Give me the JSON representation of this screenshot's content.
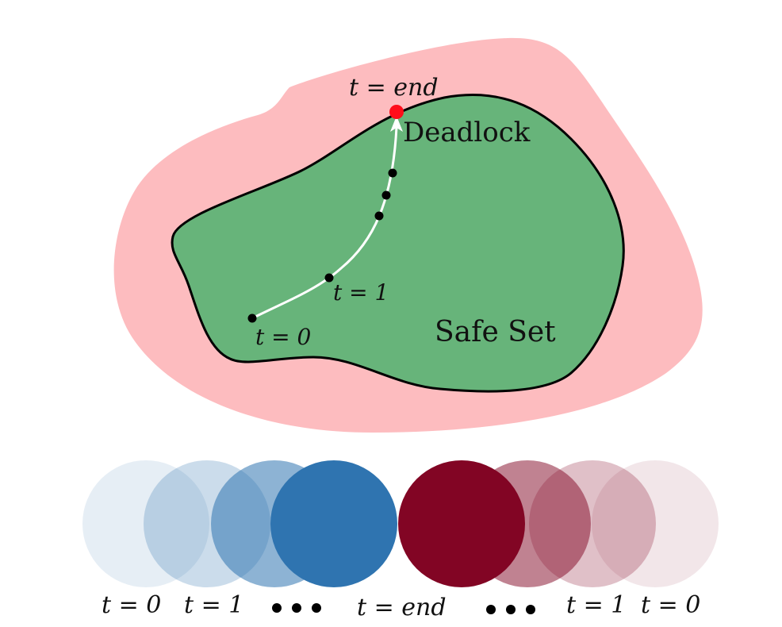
{
  "colors": {
    "unsafe_region": "#fdbcbf",
    "safe_region": "#67b47a",
    "boundary": "#000000",
    "trajectory": "#ffffff",
    "deadlock_point": "#ff0d1a",
    "agent_blue": "#2f74b0",
    "agent_red": "#820524"
  },
  "labels": {
    "safe_set": "Safe Set",
    "deadlock": "Deadlock",
    "t_end_top": "t = end",
    "t1_top": "t = 1",
    "t0_top": "t = 0"
  },
  "timeline": {
    "labels": {
      "left_t0": "t = 0",
      "left_t1": "t = 1",
      "center_end": "t = end",
      "right_t1": "t = 1",
      "right_t0": "t = 0"
    },
    "blue_agent_opacities": [
      0.12,
      0.25,
      0.55,
      1.0
    ],
    "red_agent_opacities": [
      0.1,
      0.25,
      0.5,
      1.0
    ]
  }
}
